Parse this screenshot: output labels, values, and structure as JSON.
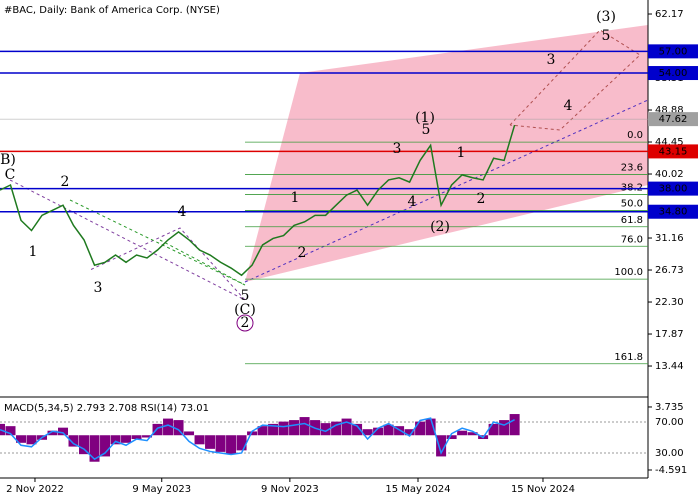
{
  "chart_data": [
    {
      "type": "line",
      "title": "#BAC, Daily:  Bank of America Corp. (NYSE)",
      "xlim": [
        0,
        61.7
      ],
      "xticks": [
        {
          "value": 3.33,
          "label": "2 Nov 2022"
        },
        {
          "value": 15.4,
          "label": "9 May 2023"
        },
        {
          "value": 27.6,
          "label": "9 Nov 2023"
        },
        {
          "value": 39.8,
          "label": "15 May 2024"
        },
        {
          "value": 51.7,
          "label": "15 Nov 2024"
        }
      ],
      "ylim": [
        9.29,
        64.11
      ],
      "yticks": [
        62.17,
        53.31,
        48.88,
        44.45,
        40.02,
        31.16,
        26.73,
        {
          "value": 22.3,
          "label": "22.30"
        },
        17.87,
        13.44
      ],
      "series": [
        {
          "color": "#1f7a1f",
          "values": [
            37.8,
            38.5,
            33.6,
            32.2,
            34.3,
            35.0,
            35.7,
            32.9,
            30.9,
            27.4,
            27.8,
            28.8,
            27.8,
            28.8,
            28.4,
            29.5,
            30.9,
            32.0,
            30.9,
            29.5,
            28.8,
            27.8,
            27.0,
            26.0,
            27.4,
            30.2,
            31.1,
            31.5,
            32.9,
            33.4,
            34.3,
            34.3,
            35.7,
            37.1,
            37.8,
            35.7,
            37.8,
            39.2,
            39.5,
            38.9,
            41.9,
            44.0,
            35.7,
            38.5,
            39.9,
            39.5,
            39.2,
            42.2,
            41.9,
            46.8
          ]
        }
      ],
      "levels": [
        {
          "value": 57,
          "label": "57.00",
          "color": "#0000cc"
        },
        {
          "value": 54,
          "label": "54.00",
          "color": "#0000cc"
        },
        {
          "value": 47.62,
          "label": "47.62",
          "color": "#a0a0a0"
        },
        {
          "value": 43.15,
          "label": "43.15",
          "color": "#dd0000"
        },
        {
          "value": 38,
          "label": "38.00",
          "color": "#0000cc"
        },
        {
          "value": 34.8,
          "label": "34.80",
          "color": "#0000cc"
        }
      ],
      "fib_levels": [
        {
          "value": 44.44,
          "label": "0.0"
        },
        {
          "value": 39.96,
          "label": "23.6"
        },
        {
          "value": 37.19,
          "label": "38.2"
        },
        {
          "value": 34.96,
          "label": "50.0"
        },
        {
          "value": 32.72,
          "label": "61.8"
        },
        {
          "value": 30.02,
          "label": "76.0"
        },
        {
          "value": 25.47,
          "label": "100.0"
        },
        {
          "value": 13.75,
          "label": "161.8"
        }
      ],
      "annotations": [
        {
          "text": "B)",
          "color": "#3a9a3a"
        },
        {
          "text": "C",
          "color": "#a03030"
        },
        {
          "text": "2",
          "color": "#a03030"
        },
        {
          "text": "1",
          "color": "#a03030"
        },
        {
          "text": "3",
          "color": "#a03030"
        },
        {
          "text": "4",
          "color": "#a03030"
        },
        {
          "text": "5",
          "color": "#a03030"
        },
        {
          "text": "(C)",
          "color": "#3a9a3a"
        },
        {
          "text": "2",
          "color": "#800080"
        },
        {
          "text": "1",
          "color": "#a03030"
        },
        {
          "text": "2",
          "color": "#a03030"
        },
        {
          "text": "3",
          "color": "#a03030"
        },
        {
          "text": "(1)",
          "color": "#3a9a3a"
        },
        {
          "text": "5",
          "color": "#a03030"
        },
        {
          "text": "4",
          "color": "#a03030"
        },
        {
          "text": "(2)",
          "color": "#3a9a3a"
        },
        {
          "text": "1",
          "color": "#a03030"
        },
        {
          "text": "2",
          "color": "#a03030"
        },
        {
          "text": "3",
          "color": "#a03030"
        },
        {
          "text": "4",
          "color": "#a03030"
        },
        {
          "text": "5",
          "color": "#a03030"
        },
        {
          "text": "(3)",
          "color": "#3a9a3a"
        }
      ]
    },
    {
      "type": "bar",
      "label": "MACD(5,34,5) 2.793 2.708 RSI(14) 73.01",
      "ylim": [
        -5.65,
        4.92
      ],
      "yticks": [
        3.735,
        -4.591
      ],
      "y2lim": [
        -2.3,
        101
      ],
      "y2ticks": [
        {
          "value": 70,
          "label": "70.00"
        },
        {
          "value": 30,
          "label": "30.00"
        }
      ],
      "series": [
        {
          "color": "#800080",
          "values": [
            1.5,
            1.2,
            -1.0,
            -1.2,
            -0.6,
            0.6,
            1.0,
            -1.5,
            -2.5,
            -3.5,
            -2.8,
            -1.2,
            -1.0,
            -0.5,
            -0.3,
            1.5,
            2.2,
            2.0,
            0.5,
            -1.2,
            -1.8,
            -2.2,
            -2.5,
            -2.0,
            0.5,
            1.2,
            1.5,
            1.8,
            2.0,
            2.4,
            2.0,
            1.6,
            1.8,
            2.2,
            1.5,
            0.8,
            1.0,
            1.4,
            1.2,
            0.8,
            1.8,
            2.2,
            -2.8,
            -0.5,
            0.6,
            0.4,
            -0.5,
            1.5,
            2.0,
            2.8
          ]
        },
        {
          "color": "#1e90ff",
          "axis": "y2",
          "values": [
            60,
            55,
            40,
            38,
            50,
            58,
            56,
            42,
            35,
            22,
            30,
            45,
            40,
            48,
            46,
            62,
            66,
            60,
            45,
            36,
            32,
            30,
            28,
            30,
            58,
            66,
            65,
            64,
            66,
            68,
            62,
            58,
            66,
            70,
            65,
            48,
            62,
            68,
            60,
            52,
            72,
            75,
            30,
            55,
            62,
            58,
            50,
            70,
            66,
            73
          ]
        }
      ]
    }
  ]
}
